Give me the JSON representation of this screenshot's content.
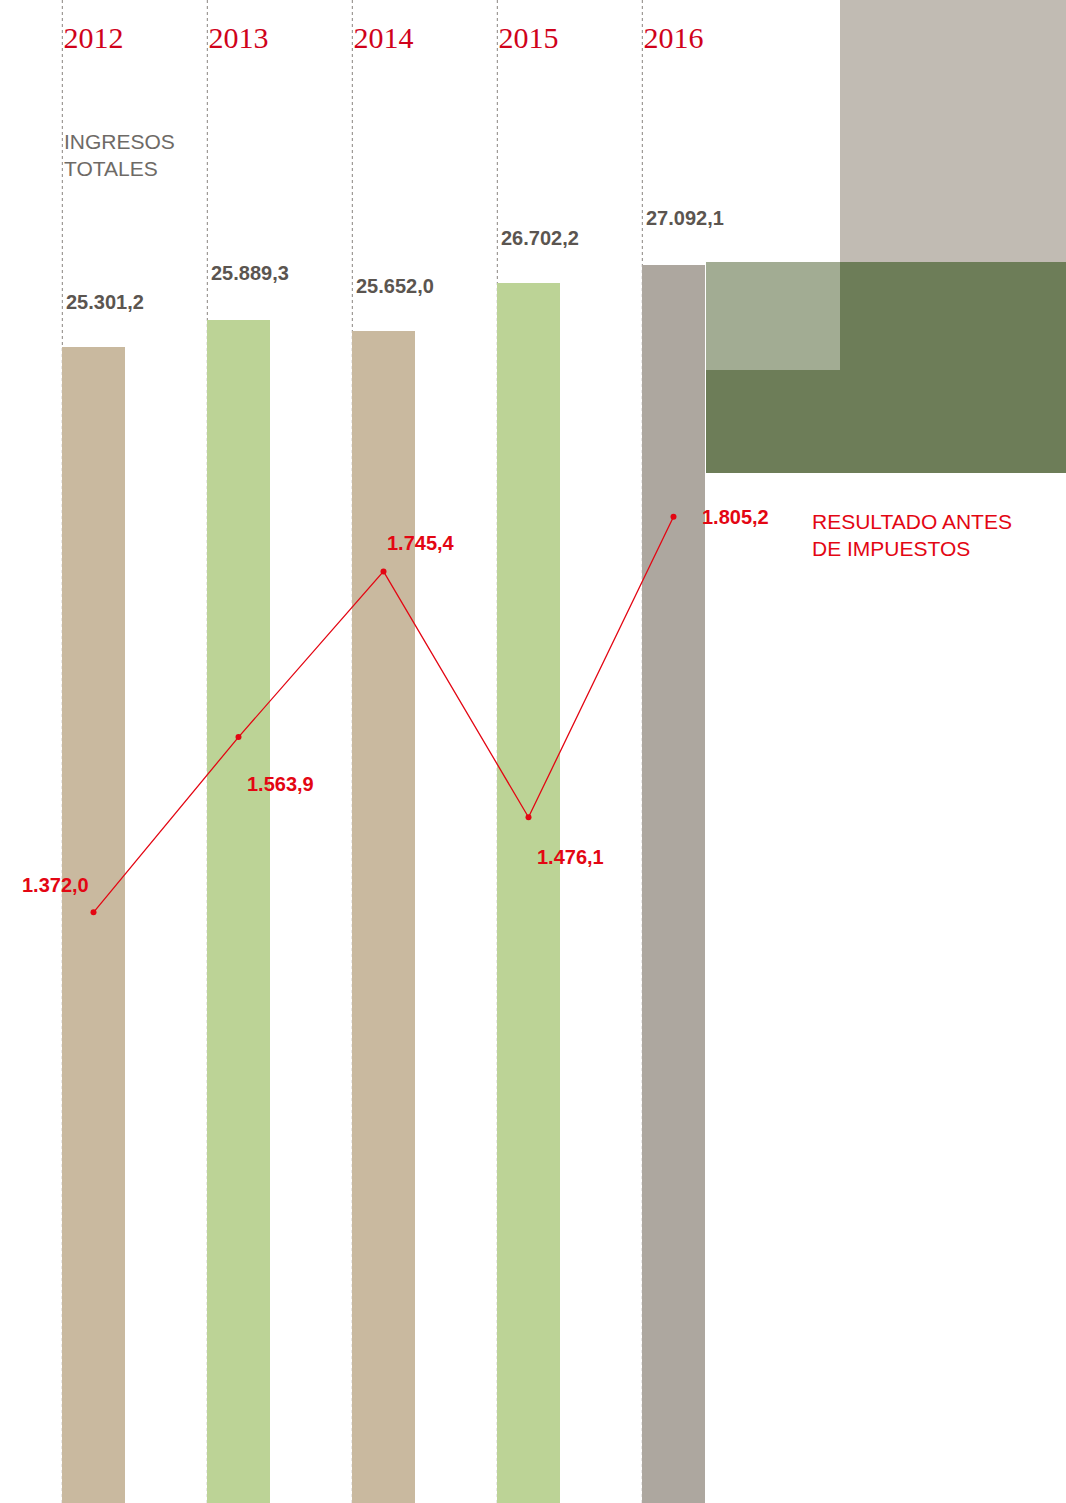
{
  "chart_data": {
    "type": "bar",
    "categories": [
      "2012",
      "2013",
      "2014",
      "2015",
      "2016"
    ],
    "series": [
      {
        "name": "INGRESOS TOTALES",
        "type": "bar",
        "values": [
          25301.2,
          25889.3,
          25652.0,
          26702.2,
          27092.1
        ],
        "value_labels": [
          "25.301,2",
          "25.889,3",
          "25.652,0",
          "26.702,2",
          "27.092,1"
        ],
        "colors": [
          "#c9b99f",
          "#bcd396",
          "#c9b99f",
          "#bcd396",
          "#ada79f"
        ]
      },
      {
        "name": "RESULTADO ANTES DE IMPUESTOS",
        "type": "line",
        "axis": "y2",
        "color": "#e30613",
        "marker": "circle",
        "line_style": "solid",
        "values": [
          1372.0,
          1563.9,
          1745.4,
          1476.1,
          1805.2
        ],
        "value_labels": [
          "1.372,0",
          "1.563,9",
          "1.745,4",
          "1.476,1",
          "1.805,2"
        ]
      }
    ],
    "ylim": [
      0,
      31700
    ],
    "y2lim": [
      725,
      2311
    ],
    "tick_labels": "x",
    "data_labels": true,
    "grid": false
  }
}
